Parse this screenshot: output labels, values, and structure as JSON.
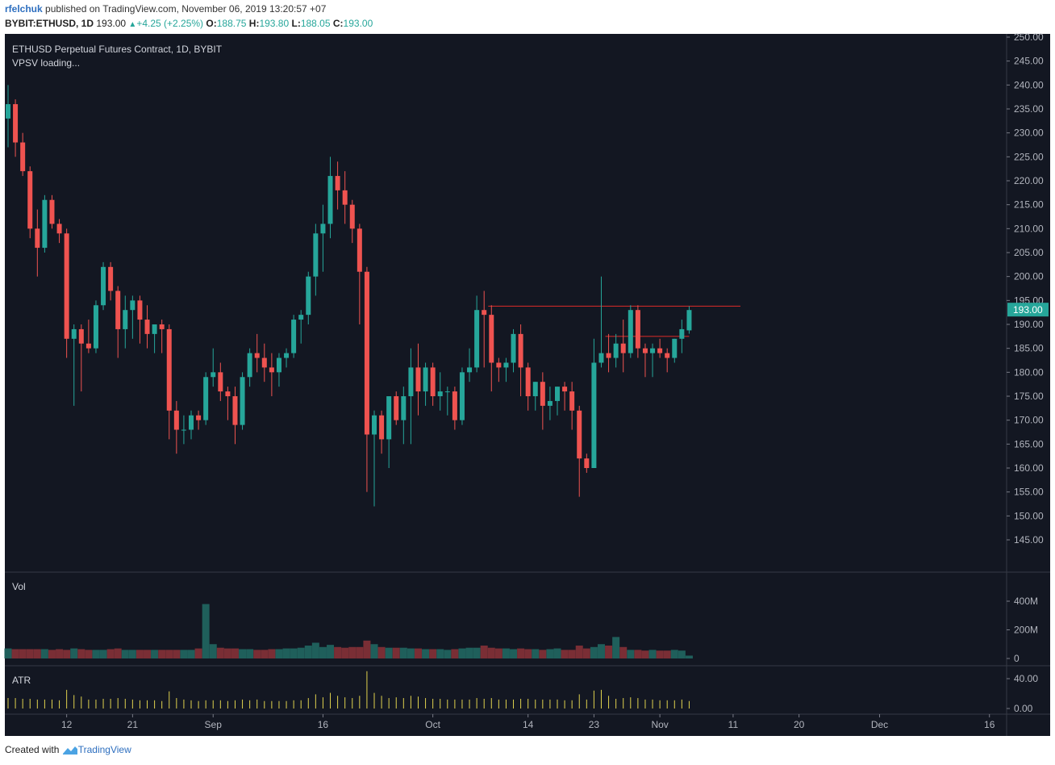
{
  "header": {
    "author": "rfelchuk",
    "published_text": " published on TradingView.com, November 06, 2019 13:20:57 +07",
    "symbol": "BYBIT:ETHUSD, 1D",
    "last": "193.00",
    "change": "+4.25 (+2.25%)",
    "o_label": "O:",
    "o_value": "188.75",
    "h_label": "H:",
    "h_value": "193.80",
    "l_label": "L:",
    "l_value": "188.05",
    "c_label": "C:",
    "c_value": "193.00"
  },
  "legend": {
    "title": "ETHUSD Perpetual Futures Contract, 1D, BYBIT",
    "indicator": "VPSV loading..."
  },
  "panes": {
    "vol_label": "Vol",
    "atr_label": "ATR"
  },
  "footer": {
    "created_with": "Created with",
    "brand": "TradingView"
  },
  "colors": {
    "background": "#131722",
    "up": "#26a69a",
    "down": "#ef5350",
    "vol_up": "#1f5f5b",
    "vol_down": "#7a2e35",
    "atr": "#e0d24e",
    "level_line": "#c62828",
    "price_tag": "#26a69a"
  },
  "chart_data": {
    "type": "candlestick",
    "price_axis": {
      "min": 145,
      "max": 250,
      "ticks": [
        "250.00",
        "245.00",
        "240.00",
        "235.00",
        "230.00",
        "225.00",
        "220.00",
        "215.00",
        "210.00",
        "205.00",
        "200.00",
        "195.00",
        "190.00",
        "185.00",
        "180.00",
        "175.00",
        "170.00",
        "165.00",
        "160.00",
        "155.00",
        "150.00",
        "145.00"
      ],
      "last_price_label": "193.00",
      "last_price": 193.0
    },
    "time_axis": {
      "labels": [
        {
          "text": "12",
          "index": 8
        },
        {
          "text": "21",
          "index": 17
        },
        {
          "text": "Sep",
          "index": 28
        },
        {
          "text": "16",
          "index": 43
        },
        {
          "text": "Oct",
          "index": 58
        },
        {
          "text": "14",
          "index": 71
        },
        {
          "text": "23",
          "index": 80
        },
        {
          "text": "Nov",
          "index": 89
        },
        {
          "text": "11",
          "index": 99
        },
        {
          "text": "20",
          "index": 108
        },
        {
          "text": "Dec",
          "index": 119
        },
        {
          "text": "16",
          "index": 134
        }
      ]
    },
    "horizontal_lines": [
      {
        "price": 193.8,
        "from_index": 66,
        "to_index": 100
      },
      {
        "price": 187.5,
        "from_index": 82,
        "to_index": 93
      }
    ],
    "candles": [
      {
        "o": 233,
        "h": 240,
        "l": 227,
        "c": 236
      },
      {
        "o": 236,
        "h": 237,
        "l": 225,
        "c": 228
      },
      {
        "o": 228,
        "h": 230,
        "l": 221,
        "c": 222
      },
      {
        "o": 222,
        "h": 223,
        "l": 208,
        "c": 210
      },
      {
        "o": 210,
        "h": 214,
        "l": 200,
        "c": 206
      },
      {
        "o": 206,
        "h": 217,
        "l": 205,
        "c": 216
      },
      {
        "o": 216,
        "h": 217,
        "l": 210,
        "c": 211
      },
      {
        "o": 211,
        "h": 212,
        "l": 207,
        "c": 209
      },
      {
        "o": 209,
        "h": 210,
        "l": 183,
        "c": 187
      },
      {
        "o": 187,
        "h": 190,
        "l": 173,
        "c": 189
      },
      {
        "o": 189,
        "h": 190,
        "l": 176,
        "c": 186
      },
      {
        "o": 186,
        "h": 191,
        "l": 184,
        "c": 185
      },
      {
        "o": 185,
        "h": 195,
        "l": 184,
        "c": 194
      },
      {
        "o": 194,
        "h": 203,
        "l": 193,
        "c": 202
      },
      {
        "o": 202,
        "h": 203,
        "l": 195,
        "c": 197
      },
      {
        "o": 197,
        "h": 198,
        "l": 183,
        "c": 189
      },
      {
        "o": 189,
        "h": 196,
        "l": 185,
        "c": 193
      },
      {
        "o": 193,
        "h": 196,
        "l": 187,
        "c": 195
      },
      {
        "o": 195,
        "h": 196,
        "l": 186,
        "c": 191
      },
      {
        "o": 191,
        "h": 194,
        "l": 185,
        "c": 188
      },
      {
        "o": 188,
        "h": 190,
        "l": 184,
        "c": 190
      },
      {
        "o": 190,
        "h": 191,
        "l": 184,
        "c": 189
      },
      {
        "o": 189,
        "h": 190,
        "l": 166,
        "c": 172
      },
      {
        "o": 172,
        "h": 174,
        "l": 163,
        "c": 168
      },
      {
        "o": 168,
        "h": 171,
        "l": 165,
        "c": 168
      },
      {
        "o": 168,
        "h": 172,
        "l": 166,
        "c": 171
      },
      {
        "o": 171,
        "h": 172,
        "l": 168,
        "c": 170
      },
      {
        "o": 170,
        "h": 180,
        "l": 169,
        "c": 179
      },
      {
        "o": 179,
        "h": 185,
        "l": 177,
        "c": 180
      },
      {
        "o": 180,
        "h": 182,
        "l": 174,
        "c": 176
      },
      {
        "o": 176,
        "h": 177,
        "l": 170,
        "c": 175
      },
      {
        "o": 175,
        "h": 177,
        "l": 165,
        "c": 169
      },
      {
        "o": 169,
        "h": 180,
        "l": 168,
        "c": 179
      },
      {
        "o": 179,
        "h": 185,
        "l": 177,
        "c": 184
      },
      {
        "o": 184,
        "h": 188,
        "l": 180,
        "c": 183
      },
      {
        "o": 183,
        "h": 186,
        "l": 178,
        "c": 181
      },
      {
        "o": 181,
        "h": 184,
        "l": 175,
        "c": 180
      },
      {
        "o": 180,
        "h": 184,
        "l": 177,
        "c": 183
      },
      {
        "o": 183,
        "h": 185,
        "l": 181,
        "c": 184
      },
      {
        "o": 184,
        "h": 192,
        "l": 183,
        "c": 191
      },
      {
        "o": 191,
        "h": 193,
        "l": 186,
        "c": 192
      },
      {
        "o": 192,
        "h": 201,
        "l": 190,
        "c": 200
      },
      {
        "o": 200,
        "h": 211,
        "l": 196,
        "c": 209
      },
      {
        "o": 209,
        "h": 215,
        "l": 201,
        "c": 211
      },
      {
        "o": 211,
        "h": 225,
        "l": 208,
        "c": 221
      },
      {
        "o": 221,
        "h": 224,
        "l": 214,
        "c": 218
      },
      {
        "o": 218,
        "h": 222,
        "l": 211,
        "c": 215
      },
      {
        "o": 215,
        "h": 216,
        "l": 207,
        "c": 210
      },
      {
        "o": 210,
        "h": 211,
        "l": 190,
        "c": 201
      },
      {
        "o": 201,
        "h": 202,
        "l": 155,
        "c": 167
      },
      {
        "o": 167,
        "h": 172,
        "l": 152,
        "c": 171
      },
      {
        "o": 171,
        "h": 172,
        "l": 163,
        "c": 166
      },
      {
        "o": 166,
        "h": 175,
        "l": 160,
        "c": 175
      },
      {
        "o": 175,
        "h": 176,
        "l": 169,
        "c": 170
      },
      {
        "o": 170,
        "h": 177,
        "l": 165,
        "c": 175
      },
      {
        "o": 175,
        "h": 185,
        "l": 165,
        "c": 181
      },
      {
        "o": 181,
        "h": 186,
        "l": 171,
        "c": 176
      },
      {
        "o": 176,
        "h": 182,
        "l": 173,
        "c": 181
      },
      {
        "o": 181,
        "h": 182,
        "l": 173,
        "c": 175
      },
      {
        "o": 175,
        "h": 180,
        "l": 172,
        "c": 176
      },
      {
        "o": 176,
        "h": 177,
        "l": 171,
        "c": 176
      },
      {
        "o": 176,
        "h": 177,
        "l": 168,
        "c": 170
      },
      {
        "o": 170,
        "h": 181,
        "l": 169,
        "c": 180
      },
      {
        "o": 180,
        "h": 185,
        "l": 178,
        "c": 181
      },
      {
        "o": 181,
        "h": 196,
        "l": 180,
        "c": 193
      },
      {
        "o": 193,
        "h": 197,
        "l": 181,
        "c": 192
      },
      {
        "o": 192,
        "h": 194,
        "l": 176,
        "c": 182
      },
      {
        "o": 182,
        "h": 183,
        "l": 178,
        "c": 181
      },
      {
        "o": 181,
        "h": 183,
        "l": 178,
        "c": 182
      },
      {
        "o": 182,
        "h": 189,
        "l": 180,
        "c": 188
      },
      {
        "o": 188,
        "h": 190,
        "l": 175,
        "c": 181
      },
      {
        "o": 181,
        "h": 182,
        "l": 172,
        "c": 175
      },
      {
        "o": 175,
        "h": 178,
        "l": 172,
        "c": 178
      },
      {
        "o": 178,
        "h": 180,
        "l": 168,
        "c": 173
      },
      {
        "o": 173,
        "h": 177,
        "l": 170,
        "c": 174
      },
      {
        "o": 174,
        "h": 177,
        "l": 171,
        "c": 177
      },
      {
        "o": 177,
        "h": 178,
        "l": 172,
        "c": 176
      },
      {
        "o": 176,
        "h": 178,
        "l": 168,
        "c": 172
      },
      {
        "o": 172,
        "h": 173,
        "l": 154,
        "c": 162
      },
      {
        "o": 162,
        "h": 163,
        "l": 159,
        "c": 160
      },
      {
        "o": 160,
        "h": 187,
        "l": 160,
        "c": 182
      },
      {
        "o": 182,
        "h": 200,
        "l": 181,
        "c": 184
      },
      {
        "o": 184,
        "h": 188,
        "l": 180,
        "c": 183
      },
      {
        "o": 183,
        "h": 188,
        "l": 181,
        "c": 186
      },
      {
        "o": 186,
        "h": 191,
        "l": 180,
        "c": 184
      },
      {
        "o": 184,
        "h": 194,
        "l": 183,
        "c": 193
      },
      {
        "o": 193,
        "h": 194,
        "l": 183,
        "c": 185
      },
      {
        "o": 185,
        "h": 186,
        "l": 179,
        "c": 184
      },
      {
        "o": 184,
        "h": 186,
        "l": 179,
        "c": 185
      },
      {
        "o": 185,
        "h": 187,
        "l": 183,
        "c": 184
      },
      {
        "o": 184,
        "h": 185,
        "l": 180,
        "c": 183
      },
      {
        "o": 183,
        "h": 187,
        "l": 182,
        "c": 187
      },
      {
        "o": 187,
        "h": 191,
        "l": 184,
        "c": 189
      },
      {
        "o": 188.75,
        "h": 193.8,
        "l": 188.05,
        "c": 193
      }
    ],
    "volume_axis": {
      "max": 400,
      "unit": "M",
      "ticks": [
        "400M",
        "200M",
        "0"
      ]
    },
    "volumes": [
      70,
      65,
      65,
      65,
      65,
      65,
      60,
      65,
      60,
      70,
      65,
      60,
      60,
      60,
      65,
      70,
      60,
      60,
      60,
      60,
      60,
      60,
      60,
      60,
      60,
      60,
      70,
      380,
      100,
      75,
      70,
      70,
      65,
      65,
      60,
      60,
      65,
      65,
      70,
      70,
      75,
      90,
      110,
      80,
      95,
      80,
      75,
      80,
      80,
      125,
      100,
      80,
      75,
      75,
      75,
      70,
      70,
      65,
      65,
      65,
      60,
      65,
      70,
      75,
      75,
      90,
      75,
      70,
      70,
      65,
      70,
      65,
      65,
      60,
      65,
      70,
      60,
      60,
      90,
      70,
      80,
      100,
      90,
      150,
      80,
      60,
      60,
      55,
      60,
      55,
      55,
      60,
      55,
      20
    ],
    "atr_axis": {
      "ticks": [
        "40.00",
        "0.00"
      ],
      "max": 50
    },
    "atr": [
      14,
      14,
      13,
      13,
      12,
      12,
      12,
      11,
      25,
      18,
      16,
      12,
      12,
      13,
      13,
      14,
      13,
      12,
      11,
      11,
      11,
      10,
      23,
      14,
      12,
      11,
      10,
      11,
      11,
      11,
      10,
      11,
      12,
      11,
      12,
      10,
      10,
      10,
      10,
      11,
      11,
      14,
      19,
      15,
      21,
      17,
      15,
      14,
      17,
      50,
      21,
      17,
      14,
      15,
      14,
      17,
      16,
      14,
      13,
      13,
      12,
      12,
      12,
      12,
      14,
      13,
      14,
      12,
      12,
      12,
      13,
      13,
      12,
      12,
      12,
      12,
      11,
      11,
      19,
      12,
      24,
      25,
      17,
      13,
      14,
      15,
      14,
      12,
      12,
      11,
      11,
      11,
      12,
      10
    ]
  }
}
